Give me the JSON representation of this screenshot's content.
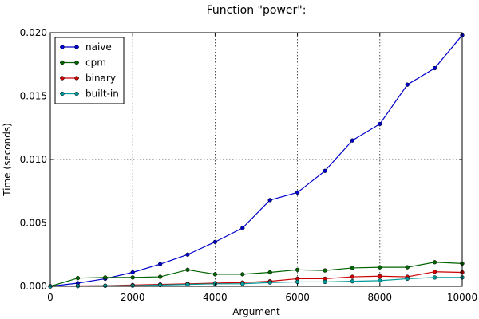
{
  "chart_data": {
    "type": "line",
    "title": "Function \"power\":",
    "xlabel": "Argument",
    "ylabel": "Time (seconds)",
    "xlim": [
      0,
      10000
    ],
    "ylim": [
      0,
      0.02
    ],
    "xticks": [
      0,
      2000,
      4000,
      6000,
      8000,
      10000
    ],
    "xtick_labels": [
      "0",
      "2000",
      "4000",
      "6000",
      "8000",
      "10000"
    ],
    "yticks": [
      0,
      0.005,
      0.01,
      0.015,
      0.02
    ],
    "ytick_labels": [
      "0.000",
      "0.005",
      "0.010",
      "0.015",
      "0.020"
    ],
    "grid": true,
    "legend_position": "top-left",
    "x": [
      0,
      667,
      1333,
      2000,
      2667,
      3333,
      4000,
      4667,
      5333,
      6000,
      6667,
      7333,
      8000,
      8667,
      9333,
      10000
    ],
    "series": [
      {
        "name": "naive",
        "color": "#0000cc",
        "values": [
          0.0,
          0.00025,
          0.0006,
          0.0011,
          0.00175,
          0.0025,
          0.0035,
          0.0046,
          0.0068,
          0.0074,
          0.0091,
          0.0115,
          0.0128,
          0.0159,
          0.0172,
          0.0198
        ]
      },
      {
        "name": "cpm",
        "color": "#006400",
        "values": [
          0.0,
          0.00065,
          0.0007,
          0.0007,
          0.00075,
          0.0013,
          0.00095,
          0.00095,
          0.0011,
          0.0013,
          0.00125,
          0.00145,
          0.0015,
          0.0015,
          0.0019,
          0.0018
        ]
      },
      {
        "name": "binary",
        "color": "#cc0000",
        "values": [
          0.0,
          3e-05,
          5e-05,
          0.0001,
          0.00015,
          0.0002,
          0.00025,
          0.0003,
          0.0004,
          0.0006,
          0.0006,
          0.00075,
          0.0008,
          0.00075,
          0.00115,
          0.0011
        ]
      },
      {
        "name": "built-in",
        "color": "#009999",
        "values": [
          0.0,
          2e-05,
          4e-05,
          5e-05,
          0.0001,
          0.00015,
          0.0002,
          0.0002,
          0.0003,
          0.00035,
          0.00035,
          0.0004,
          0.00045,
          0.0006,
          0.0007,
          0.0007
        ]
      }
    ]
  }
}
